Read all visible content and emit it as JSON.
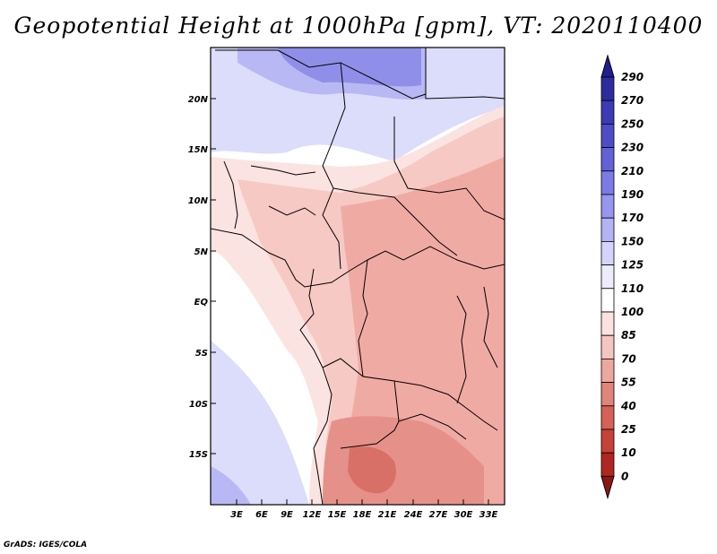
{
  "title": "Geopotential Height at 1000hPa [gpm], VT: 2020110400",
  "credit": "GrADS: IGES/COLA",
  "map": {
    "lat_labels": [
      "20N",
      "15N",
      "10N",
      "5N",
      "EQ",
      "5S",
      "10S",
      "15S"
    ],
    "lon_labels": [
      "3E",
      "6E",
      "9E",
      "12E",
      "15E",
      "18E",
      "21E",
      "24E",
      "27E",
      "30E",
      "33E"
    ]
  },
  "colorbar": {
    "levels": [
      "290",
      "270",
      "250",
      "230",
      "210",
      "190",
      "170",
      "150",
      "125",
      "110",
      "100",
      "85",
      "70",
      "55",
      "40",
      "25",
      "10",
      "0"
    ],
    "colors": [
      "#1f1f8f",
      "#2c2c9e",
      "#3b3bb5",
      "#4d4dc8",
      "#6262d8",
      "#7b7be6",
      "#9696ef",
      "#b3b3f5",
      "#d4d4fa",
      "#ececfd",
      "#ffffff",
      "#fbe1df",
      "#f5c5c0",
      "#eca79f",
      "#e18479",
      "#d56157",
      "#c64138",
      "#b02620",
      "#8e1612"
    ]
  }
}
